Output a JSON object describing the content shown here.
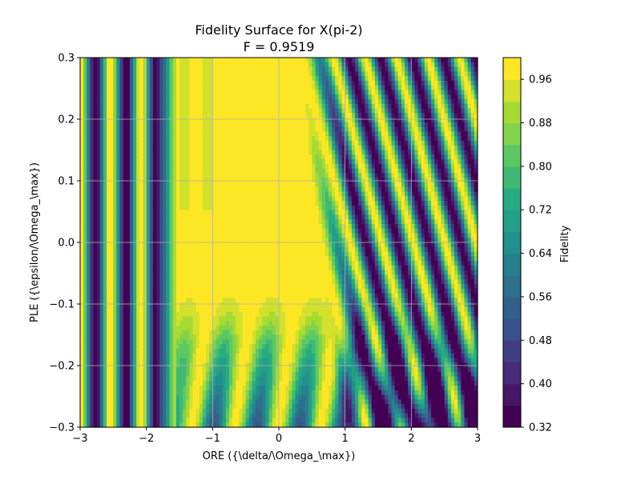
{
  "chart_data": {
    "type": "heatmap",
    "title": "Fidelity Surface for X(pi-2)",
    "subtitle": "F = 0.9519",
    "xlabel": "ORE ({\\delta/\\Omega_\\max})",
    "ylabel": "PLE ({\\epsilon/\\Omega_\\max})",
    "xlim": [
      -3,
      3
    ],
    "ylim": [
      -0.3,
      0.3
    ],
    "xticks": [
      -3,
      -2,
      -1,
      0,
      1,
      2,
      3
    ],
    "yticks": [
      -0.3,
      -0.2,
      -0.1,
      0.0,
      0.1,
      0.2,
      0.3
    ],
    "grid": true,
    "colorbar": {
      "label": "Fidelity",
      "colormap": "viridis",
      "range": [
        0.32,
        1.0
      ],
      "levels": [
        0.32,
        0.36,
        0.4,
        0.44,
        0.48,
        0.52,
        0.56,
        0.6,
        0.64,
        0.68,
        0.72,
        0.76,
        0.8,
        0.84,
        0.88,
        0.92,
        0.96,
        1.0
      ],
      "ticks": [
        0.32,
        0.4,
        0.48,
        0.56,
        0.64,
        0.72,
        0.8,
        0.88,
        0.96
      ]
    },
    "max_fidelity": 0.9519
  }
}
